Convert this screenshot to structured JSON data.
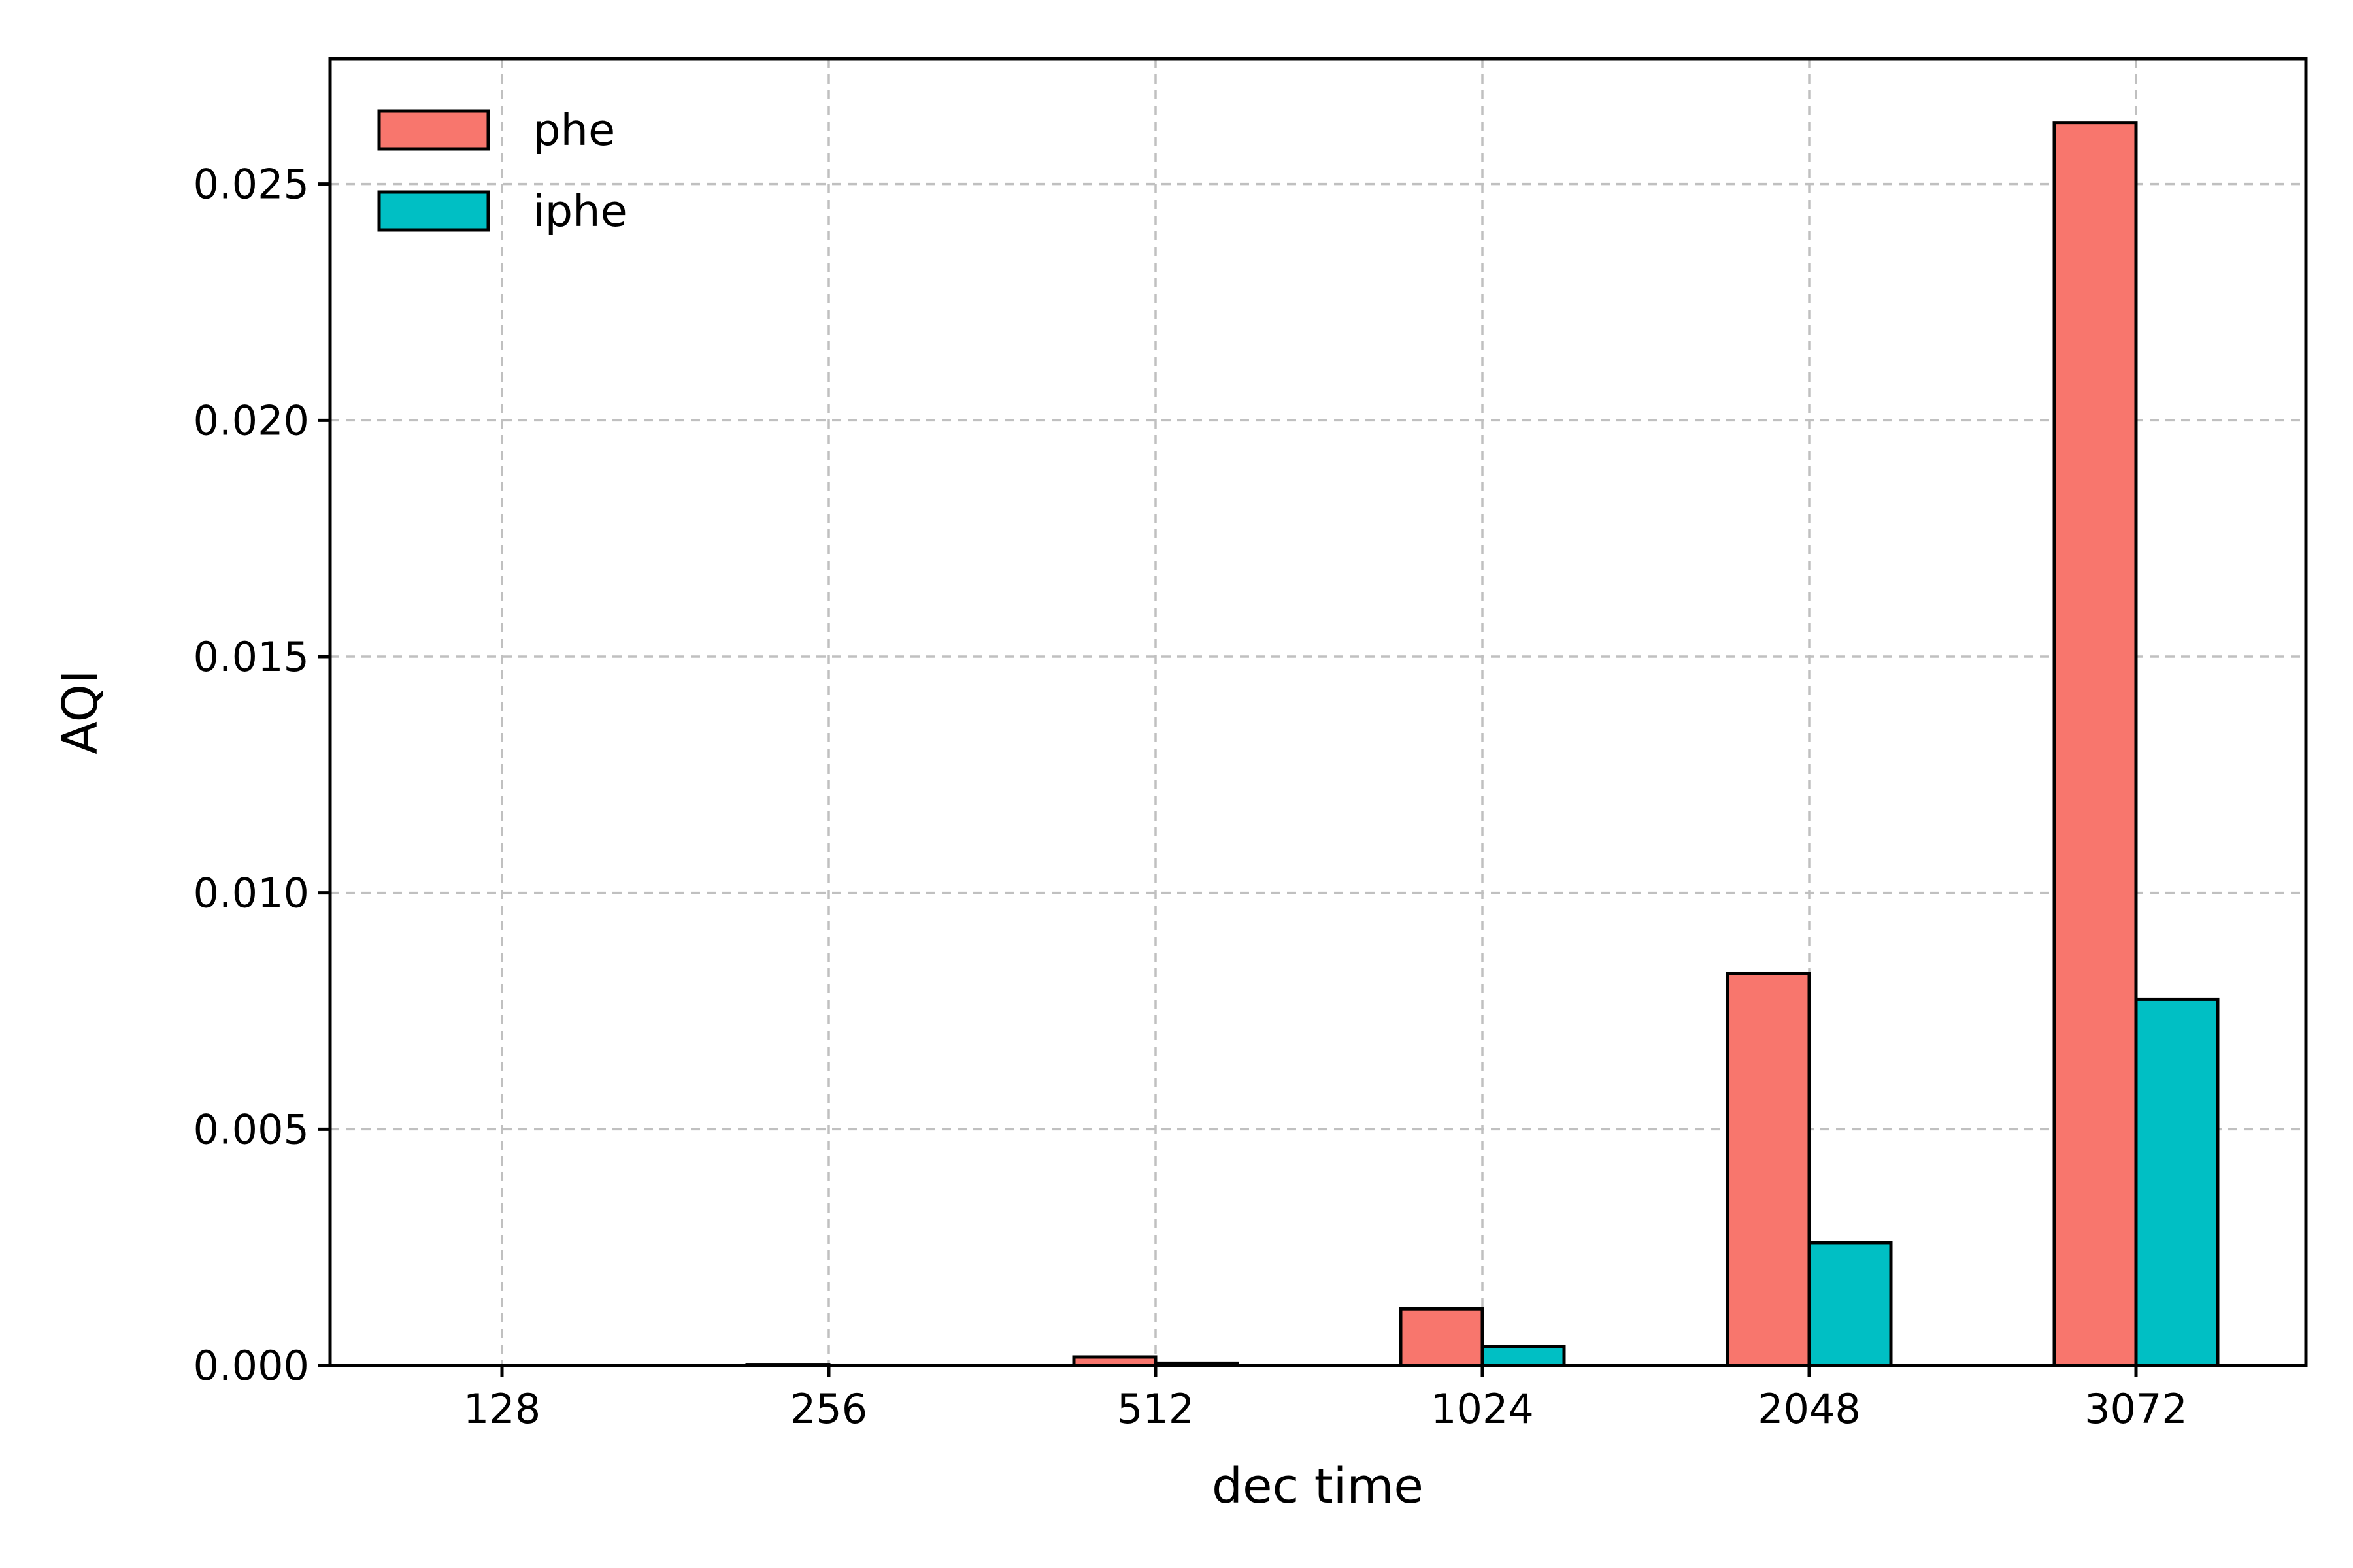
{
  "chart_data": {
    "type": "bar",
    "categories": [
      "128",
      "256",
      "512",
      "1024",
      "2048",
      "3072"
    ],
    "series": [
      {
        "name": "phe",
        "color": "#f8766d",
        "values": [
          5e-06,
          2e-05,
          0.00018,
          0.0012,
          0.0083,
          0.0263
        ]
      },
      {
        "name": "iphe",
        "color": "#00bfc4",
        "values": [
          2e-06,
          7e-06,
          5e-05,
          0.0004,
          0.0026,
          0.00775
        ]
      }
    ],
    "title": "",
    "xlabel": "dec time",
    "ylabel": "AQI",
    "ylim": [
      0,
      0.02765
    ],
    "yticks": [
      "0.000",
      "0.005",
      "0.010",
      "0.015",
      "0.020",
      "0.025"
    ],
    "ytick_values": [
      0,
      0.005,
      0.01,
      0.015,
      0.02,
      0.025
    ],
    "grid": true,
    "legend_position": "top-left"
  }
}
